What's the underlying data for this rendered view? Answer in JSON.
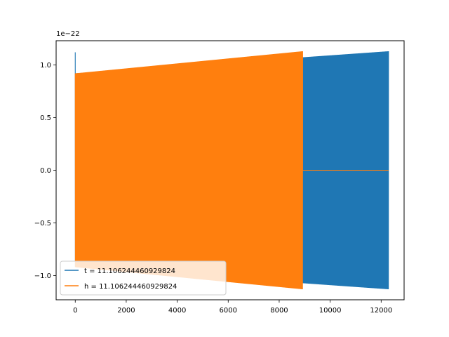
{
  "chart_data": {
    "type": "line",
    "title": "",
    "xlabel": "",
    "ylabel": "",
    "y_offset_text": "1e−22",
    "xlim": [
      -750,
      12900
    ],
    "ylim": [
      -1.23,
      1.23
    ],
    "xticks": [
      0,
      2000,
      4000,
      6000,
      8000,
      10000,
      12000
    ],
    "xtick_labels": [
      "0",
      "2000",
      "4000",
      "6000",
      "8000",
      "10000",
      "12000"
    ],
    "yticks": [
      1.0,
      0.5,
      0.0,
      -0.5,
      -1.0
    ],
    "ytick_labels": [
      "1.0",
      "0.5",
      "0.0",
      "−0.5",
      "−1.0"
    ],
    "grid": false,
    "legend_position": "lower-left",
    "series": [
      {
        "name": "t = 11.106244460929824",
        "color": "#1f77b4",
        "x_range": [
          0,
          12290
        ],
        "envelope_start": 0.92,
        "envelope_end": 1.13,
        "initial_spike": 1.12
      },
      {
        "name": "h = 11.106244460929824",
        "color": "#ff7f0e",
        "x_range": [
          0,
          8920
        ],
        "envelope_start": 0.92,
        "envelope_end": 1.13,
        "flat_after": 8920,
        "flat_until": 12290,
        "flat_value": 0.0
      }
    ]
  }
}
